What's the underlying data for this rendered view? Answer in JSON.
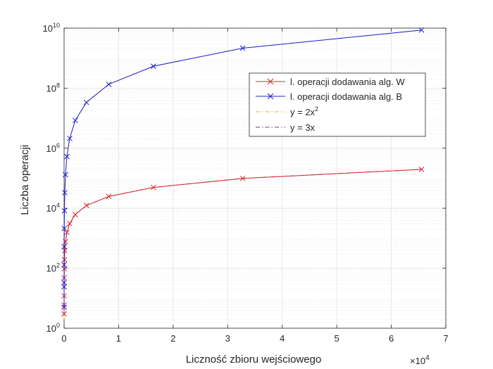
{
  "chart_data": {
    "type": "line",
    "xlabel": "Liczność zbioru wejściowego",
    "ylabel": "Liczba operacji",
    "x_exponent_base": "×10",
    "x_exponent_power": "4",
    "x_scale_factor": 10000,
    "xlim": [
      0,
      70000
    ],
    "ylim": [
      1,
      10000000000
    ],
    "y_scale": "log",
    "grid": true,
    "minor_grid": true,
    "legend_position": "right-middle",
    "x_ticks": [
      {
        "value": 0,
        "label": "0"
      },
      {
        "value": 10000,
        "label": "1"
      },
      {
        "value": 20000,
        "label": "2"
      },
      {
        "value": 30000,
        "label": "3"
      },
      {
        "value": 40000,
        "label": "4"
      },
      {
        "value": 50000,
        "label": "5"
      },
      {
        "value": 60000,
        "label": "6"
      },
      {
        "value": 70000,
        "label": "7"
      }
    ],
    "y_ticks": [
      {
        "value": 1,
        "base": "10",
        "exp": "0"
      },
      {
        "value": 100,
        "base": "10",
        "exp": "2"
      },
      {
        "value": 10000,
        "base": "10",
        "exp": "4"
      },
      {
        "value": 1000000,
        "base": "10",
        "exp": "6"
      },
      {
        "value": 100000000,
        "base": "10",
        "exp": "8"
      },
      {
        "value": 10000000000,
        "base": "10",
        "exp": "10"
      }
    ],
    "x": [
      1,
      2,
      4,
      8,
      16,
      32,
      64,
      128,
      256,
      512,
      1024,
      2048,
      4096,
      8192,
      16384,
      32768,
      65536
    ],
    "series": [
      {
        "name": "l. operacji dodawania alg. W",
        "color": "#d62728",
        "line_style": "solid",
        "marker": "x",
        "values": [
          3,
          6,
          12,
          24,
          48,
          96,
          192,
          384,
          768,
          1536,
          3072,
          6144,
          12288,
          24576,
          49152,
          98304,
          196608
        ]
      },
      {
        "name": "l. operacji dodawania alg. B",
        "color": "#1f1fd6",
        "line_style": "solid",
        "marker": "x",
        "values": [
          5,
          24,
          33,
          130,
          520,
          2100,
          8200,
          33000,
          131000,
          524000,
          2100000,
          8400000,
          33500000,
          134000000,
          537000000,
          2150000000,
          8590000000
        ]
      },
      {
        "name_prefix": "y = 2x",
        "name_sup": "2",
        "color": "#edb120",
        "line_style": "dashdot",
        "marker": "none",
        "formula": "2x^2"
      },
      {
        "name": "y = 3x",
        "color": "#7e2f8e",
        "line_style": "dashdot",
        "marker": "none",
        "formula": "3x"
      }
    ]
  }
}
